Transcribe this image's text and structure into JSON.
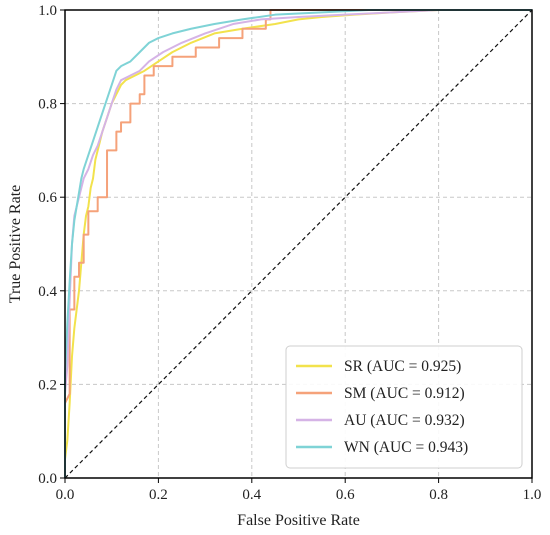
{
  "chart_data": {
    "type": "line",
    "title": "",
    "xlabel": "False Positive Rate",
    "ylabel": "True Positive Rate",
    "xlim": [
      0.0,
      1.0
    ],
    "ylim": [
      0.0,
      1.0
    ],
    "xticks": [
      "0.0",
      "0.2",
      "0.4",
      "0.6",
      "0.8",
      "1.0"
    ],
    "yticks": [
      "0.0",
      "0.2",
      "0.4",
      "0.6",
      "0.8",
      "1.0"
    ],
    "grid": true,
    "legend_position": "bottom-right",
    "series": [
      {
        "name": "SR (AUC = 0.925)",
        "color": "#f2e24c",
        "points": [
          [
            0,
            0
          ],
          [
            0,
            0.04
          ],
          [
            0.005,
            0.08
          ],
          [
            0.01,
            0.16
          ],
          [
            0.015,
            0.26
          ],
          [
            0.02,
            0.32
          ],
          [
            0.025,
            0.36
          ],
          [
            0.03,
            0.4
          ],
          [
            0.035,
            0.46
          ],
          [
            0.04,
            0.52
          ],
          [
            0.045,
            0.56
          ],
          [
            0.05,
            0.58
          ],
          [
            0.055,
            0.62
          ],
          [
            0.06,
            0.64
          ],
          [
            0.065,
            0.68
          ],
          [
            0.07,
            0.7
          ],
          [
            0.075,
            0.72
          ],
          [
            0.08,
            0.74
          ],
          [
            0.09,
            0.77
          ],
          [
            0.1,
            0.8
          ],
          [
            0.11,
            0.82
          ],
          [
            0.12,
            0.84
          ],
          [
            0.13,
            0.85
          ],
          [
            0.15,
            0.86
          ],
          [
            0.17,
            0.87
          ],
          [
            0.2,
            0.89
          ],
          [
            0.23,
            0.91
          ],
          [
            0.27,
            0.93
          ],
          [
            0.32,
            0.95
          ],
          [
            0.38,
            0.96
          ],
          [
            0.45,
            0.97
          ],
          [
            0.5,
            0.98
          ],
          [
            0.55,
            0.985
          ],
          [
            0.62,
            0.99
          ],
          [
            0.7,
            0.995
          ],
          [
            0.8,
            1.0
          ],
          [
            1.0,
            1.0
          ]
        ]
      },
      {
        "name": "SM (AUC = 0.912)",
        "color": "#f5a27a",
        "points": [
          [
            0,
            0
          ],
          [
            0,
            0.16
          ],
          [
            0.01,
            0.18
          ],
          [
            0.01,
            0.36
          ],
          [
            0.02,
            0.36
          ],
          [
            0.02,
            0.43
          ],
          [
            0.03,
            0.43
          ],
          [
            0.03,
            0.46
          ],
          [
            0.04,
            0.46
          ],
          [
            0.04,
            0.52
          ],
          [
            0.05,
            0.52
          ],
          [
            0.05,
            0.57
          ],
          [
            0.07,
            0.57
          ],
          [
            0.07,
            0.6
          ],
          [
            0.09,
            0.6
          ],
          [
            0.09,
            0.7
          ],
          [
            0.11,
            0.7
          ],
          [
            0.11,
            0.74
          ],
          [
            0.12,
            0.74
          ],
          [
            0.12,
            0.76
          ],
          [
            0.14,
            0.76
          ],
          [
            0.14,
            0.8
          ],
          [
            0.16,
            0.8
          ],
          [
            0.16,
            0.82
          ],
          [
            0.17,
            0.82
          ],
          [
            0.17,
            0.86
          ],
          [
            0.19,
            0.86
          ],
          [
            0.19,
            0.88
          ],
          [
            0.23,
            0.88
          ],
          [
            0.23,
            0.9
          ],
          [
            0.28,
            0.9
          ],
          [
            0.28,
            0.92
          ],
          [
            0.33,
            0.92
          ],
          [
            0.33,
            0.94
          ],
          [
            0.38,
            0.94
          ],
          [
            0.38,
            0.96
          ],
          [
            0.43,
            0.96
          ],
          [
            0.43,
            0.98
          ],
          [
            0.44,
            0.98
          ],
          [
            0.44,
            1.0
          ],
          [
            1.0,
            1.0
          ]
        ]
      },
      {
        "name": "AU (AUC = 0.932)",
        "color": "#d5b3e6",
        "points": [
          [
            0,
            0
          ],
          [
            0,
            0.18
          ],
          [
            0.005,
            0.24
          ],
          [
            0.01,
            0.38
          ],
          [
            0.015,
            0.5
          ],
          [
            0.02,
            0.56
          ],
          [
            0.025,
            0.58
          ],
          [
            0.03,
            0.6
          ],
          [
            0.035,
            0.62
          ],
          [
            0.04,
            0.64
          ],
          [
            0.05,
            0.66
          ],
          [
            0.06,
            0.69
          ],
          [
            0.07,
            0.71
          ],
          [
            0.08,
            0.74
          ],
          [
            0.09,
            0.77
          ],
          [
            0.1,
            0.8
          ],
          [
            0.11,
            0.83
          ],
          [
            0.12,
            0.85
          ],
          [
            0.14,
            0.86
          ],
          [
            0.16,
            0.87
          ],
          [
            0.18,
            0.89
          ],
          [
            0.21,
            0.91
          ],
          [
            0.25,
            0.93
          ],
          [
            0.3,
            0.95
          ],
          [
            0.36,
            0.97
          ],
          [
            0.42,
            0.98
          ],
          [
            0.5,
            0.985
          ],
          [
            0.6,
            0.99
          ],
          [
            0.7,
            0.995
          ],
          [
            0.8,
            1.0
          ],
          [
            1.0,
            1.0
          ]
        ]
      },
      {
        "name": "WN (AUC = 0.943)",
        "color": "#7fd3d6",
        "points": [
          [
            0,
            0
          ],
          [
            0,
            0.22
          ],
          [
            0.005,
            0.33
          ],
          [
            0.01,
            0.42
          ],
          [
            0.015,
            0.5
          ],
          [
            0.02,
            0.55
          ],
          [
            0.025,
            0.58
          ],
          [
            0.03,
            0.61
          ],
          [
            0.035,
            0.64
          ],
          [
            0.04,
            0.66
          ],
          [
            0.05,
            0.69
          ],
          [
            0.06,
            0.72
          ],
          [
            0.07,
            0.75
          ],
          [
            0.08,
            0.78
          ],
          [
            0.09,
            0.81
          ],
          [
            0.1,
            0.84
          ],
          [
            0.11,
            0.87
          ],
          [
            0.12,
            0.88
          ],
          [
            0.14,
            0.89
          ],
          [
            0.16,
            0.91
          ],
          [
            0.18,
            0.93
          ],
          [
            0.2,
            0.94
          ],
          [
            0.23,
            0.95
          ],
          [
            0.27,
            0.96
          ],
          [
            0.32,
            0.97
          ],
          [
            0.38,
            0.98
          ],
          [
            0.45,
            0.99
          ],
          [
            0.55,
            0.995
          ],
          [
            0.65,
            1.0
          ],
          [
            1.0,
            1.0
          ]
        ]
      }
    ],
    "reference_line": {
      "points": [
        [
          0,
          0
        ],
        [
          1,
          1
        ]
      ],
      "color": "#111111",
      "style": "dashed"
    }
  }
}
